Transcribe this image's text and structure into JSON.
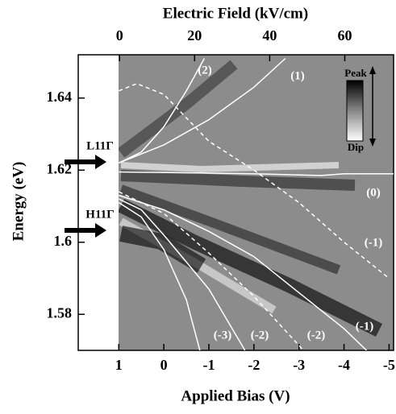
{
  "chart_data": {
    "type": "line",
    "xlabel": "Applied Bias (V)",
    "x2label": "Electric Field (kV/cm)",
    "ylabel": "Energy (eV)",
    "xlim": [
      1.9,
      -5.1
    ],
    "xticks": [
      1,
      0,
      -1,
      -2,
      -3,
      -4,
      -5
    ],
    "x2lim": [
      -11,
      73
    ],
    "x2ticks": [
      0,
      20,
      40,
      60
    ],
    "ylim": [
      1.57,
      1.652
    ],
    "yticks": [
      1.58,
      1.6,
      1.62,
      1.64
    ],
    "series": [
      {
        "color": "#ffffff",
        "dash": false,
        "x": [
          1,
          0.5,
          0,
          -0.5,
          -0.9
        ],
        "values": [
          1.622,
          1.625,
          1.632,
          1.642,
          1.651
        ]
      },
      {
        "color": "#ffffff",
        "dash": false,
        "x": [
          1,
          0,
          -1,
          -2,
          -2.7
        ],
        "values": [
          1.622,
          1.627,
          1.634,
          1.643,
          1.651
        ]
      },
      {
        "color": "#ffffff",
        "dash": false,
        "x": [
          1,
          -2,
          -3.5,
          -4,
          -5.1
        ],
        "values": [
          1.6195,
          1.619,
          1.6185,
          1.619,
          1.619
        ]
      },
      {
        "color": "#ffffff",
        "dash": true,
        "x": [
          1,
          0.6,
          0,
          -1,
          -2,
          -3,
          -4,
          -5
        ],
        "values": [
          1.642,
          1.644,
          1.641,
          1.628,
          1.62,
          1.611,
          1.6,
          1.59
        ]
      },
      {
        "color": "#ffffff",
        "dash": false,
        "x": [
          1,
          0.5,
          0,
          -0.5,
          -0.8
        ],
        "values": [
          1.611,
          1.607,
          1.598,
          1.584,
          1.57
        ]
      },
      {
        "color": "#ffffff",
        "dash": false,
        "x": [
          1,
          0.5,
          0,
          -1,
          -1.8
        ],
        "values": [
          1.612,
          1.609,
          1.602,
          1.587,
          1.57
        ]
      },
      {
        "color": "#ffffff",
        "dash": true,
        "x": [
          1,
          0,
          -1,
          -2,
          -3.1
        ],
        "values": [
          1.614,
          1.608,
          1.597,
          1.585,
          1.57
        ]
      },
      {
        "color": "#ffffff",
        "dash": false,
        "x": [
          1,
          0,
          -1,
          -2,
          -3,
          -4,
          -4.5
        ],
        "values": [
          1.613,
          1.609,
          1.603,
          1.596,
          1.586,
          1.576,
          1.57
        ]
      }
    ],
    "annotations": [
      "(2)",
      "(1)",
      "(0)",
      "(-1)",
      "(-3)",
      "(-2)",
      "(-2)",
      "(-1)",
      "L11Γ",
      "H11Γ",
      "Peak",
      "Dip"
    ]
  }
}
